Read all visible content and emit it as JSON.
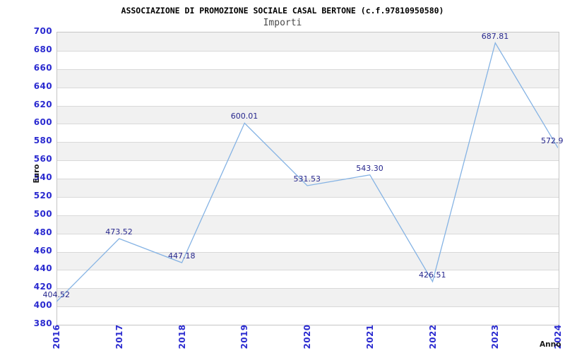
{
  "header": {
    "title": "ASSOCIAZIONE DI PROMOZIONE SOCIALE CASAL BERTONE (c.f.97810950580)",
    "subtitle": "Importi"
  },
  "chart_data": {
    "type": "line",
    "title": "ASSOCIAZIONE DI PROMOZIONE SOCIALE CASAL BERTONE (c.f.97810950580)",
    "subtitle": "Importi",
    "categories": [
      "2016",
      "2017",
      "2018",
      "2019",
      "2020",
      "2021",
      "2022",
      "2023",
      "2024"
    ],
    "series": [
      {
        "name": "Importi",
        "values": [
          404.52,
          473.52,
          447.18,
          600.01,
          531.53,
          543.3,
          426.51,
          687.81,
          572.9
        ],
        "labels": [
          "404.52",
          "473.52",
          "447.18",
          "600.01",
          "531.53",
          "543.30",
          "426.51",
          "687.81",
          "572.9"
        ]
      }
    ],
    "xlabel": "Anno",
    "ylabel": "Euro",
    "ylim": [
      380,
      700
    ],
    "ytick_step": 20,
    "y_ticks": [
      "700",
      "680",
      "660",
      "640",
      "620",
      "600",
      "580",
      "560",
      "540",
      "520",
      "500",
      "480",
      "460",
      "440",
      "420",
      "400",
      "380"
    ],
    "grid": "horizontal alternating bands, gridline each 20",
    "legend_position": "none"
  },
  "colors": {
    "line": "#85b3e4",
    "axis_tick_label": "#2b2bd0",
    "data_label": "#27278d",
    "band_gray": "#f1f1f1",
    "band_white": "#ffffff",
    "gridline": "#d9d9d9",
    "plot_border": "#c5c5c5",
    "title": "#000000",
    "subtitle": "#4a4a4a",
    "axis_name": "#1a1a1a"
  }
}
